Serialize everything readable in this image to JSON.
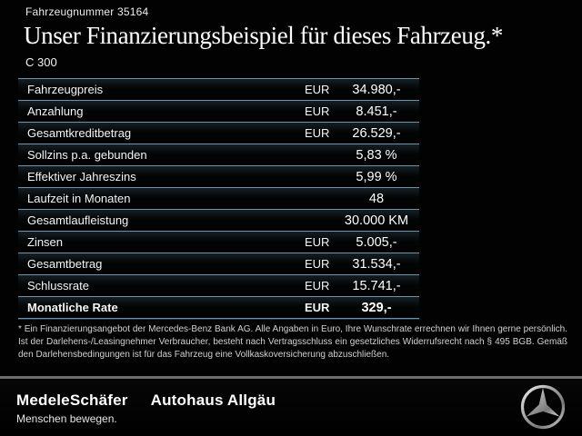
{
  "header": {
    "vehicle_number": "Fahrzeugnummer 35164",
    "title": "Unser Finanzierungsbeispiel für dieses Fahrzeug.*",
    "model": "C 300"
  },
  "finance_table": {
    "rows": [
      {
        "label": "Fahrzeugpreis",
        "currency": "EUR",
        "value": "34.980,-",
        "bold": false
      },
      {
        "label": "Anzahlung",
        "currency": "EUR",
        "value": "8.451,-",
        "bold": false
      },
      {
        "label": "Gesamtkreditbetrag",
        "currency": "EUR",
        "value": "26.529,-",
        "bold": false
      },
      {
        "label": "Sollzins p.a. gebunden",
        "currency": "",
        "value": "5,83 %",
        "bold": false
      },
      {
        "label": "Effektiver Jahreszins",
        "currency": "",
        "value": "5,99 %",
        "bold": false
      },
      {
        "label": "Laufzeit in Monaten",
        "currency": "",
        "value": "48",
        "bold": false
      },
      {
        "label": "Gesamtlaufleistung",
        "currency": "",
        "value": "30.000 KM",
        "bold": false
      },
      {
        "label": "Zinsen",
        "currency": "EUR",
        "value": "5.005,-",
        "bold": false
      },
      {
        "label": "Gesamtbetrag",
        "currency": "EUR",
        "value": "31.534,-",
        "bold": false
      },
      {
        "label": "Schlussrate",
        "currency": "EUR",
        "value": "15.741,-",
        "bold": false
      },
      {
        "label": "Monatliche Rate",
        "currency": "EUR",
        "value": "329,-",
        "bold": true
      }
    ]
  },
  "disclaimer": {
    "text": "* Ein Finanzierungsangebot der Mercedes-Benz Bank AG. Alle Angaben in Euro, Ihre Wunschrate errechnen wir Ihnen gerne persönlich. Ist der Darlehens-/Leasingnehmer Verbraucher, besteht nach Vertragsschluss ein gesetzliches Widerrufsrecht nach § 495 BGB. Gemäß den Darlehensbedingungen ist für das Fahrzeug eine Vollkaskoversicherung abzuschließen."
  },
  "footer": {
    "dealer_logo": "MedeleSchäfer",
    "dealer_name": "Autohaus Allgäu",
    "tagline": "Menschen bewegen.",
    "brand_icon": "mercedes-benz-star"
  },
  "colors": {
    "background": "#020202",
    "table_divider": "#6c93a8",
    "table_divider_shadow": "#16354a",
    "footer_divider": "#6e6e6e",
    "text_primary": "#ffffff",
    "text_secondary": "#d2d2d2",
    "logo_silver": "#c9c9c9"
  }
}
